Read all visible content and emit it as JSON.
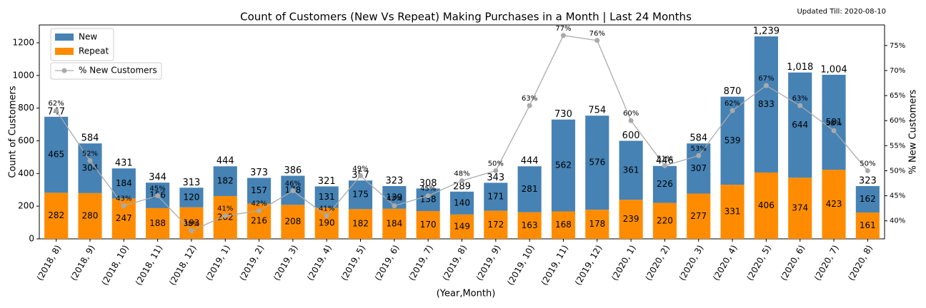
{
  "chart_data": {
    "type": "bar",
    "title": "Count of Customers (New Vs Repeat) Making Purchases in a Month | Last 24 Months",
    "subtitle": "Updated Till: 2020-08-10",
    "x_label": "(Year,Month)",
    "y_label": "Count of Customers",
    "y2_label": "% New Customers",
    "categories": [
      "(2018, 8)",
      "(2018, 9)",
      "(2018, 10)",
      "(2018, 11)",
      "(2018, 12)",
      "(2019, 1)",
      "(2019, 2)",
      "(2019, 3)",
      "(2019, 4)",
      "(2019, 5)",
      "(2019, 6)",
      "(2019, 7)",
      "(2019, 8)",
      "(2019, 9)",
      "(2019, 10)",
      "(2019, 11)",
      "(2019, 12)",
      "(2020, 1)",
      "(2020, 2)",
      "(2020, 3)",
      "(2020, 4)",
      "(2020, 5)",
      "(2020, 6)",
      "(2020, 7)",
      "(2020, 8)"
    ],
    "series": [
      {
        "name": "New",
        "color": "#4682b4",
        "values": [
          465,
          304,
          184,
          156,
          120,
          182,
          157,
          178,
          131,
          175,
          139,
          138,
          140,
          171,
          281,
          562,
          576,
          361,
          226,
          307,
          539,
          833,
          644,
          581,
          162
        ]
      },
      {
        "name": "Repeat",
        "color": "#ff8c00",
        "values": [
          282,
          280,
          247,
          188,
          193,
          262,
          216,
          208,
          190,
          182,
          184,
          170,
          149,
          172,
          163,
          168,
          178,
          239,
          220,
          277,
          331,
          406,
          374,
          423,
          161
        ]
      },
      {
        "name": "% New Customers",
        "color": "#aaaaaa",
        "axis": "y2",
        "values": [
          62,
          52,
          43,
          45,
          38,
          41,
          42,
          46,
          41,
          49,
          43,
          45,
          48,
          50,
          63,
          77,
          76,
          60,
          51,
          53,
          62,
          67,
          63,
          58,
          50
        ],
        "value_labels": [
          "62%",
          "52%",
          "43%",
          "45%",
          "38%",
          "41%",
          "42%",
          "46%",
          "41%",
          "49%",
          "43%",
          "45%",
          "48%",
          "50%",
          "63%",
          "77%",
          "76%",
          "60%",
          "51%",
          "53%",
          "62%",
          "67%",
          "63%",
          "58%",
          "50%"
        ]
      }
    ],
    "totals": {
      "values": [
        747,
        584,
        431,
        344,
        313,
        444,
        373,
        386,
        321,
        357,
        323,
        308,
        289,
        343,
        444,
        730,
        754,
        600,
        446,
        584,
        870,
        1239,
        1018,
        1004,
        323
      ],
      "value_labels": [
        "747",
        "584",
        "431",
        "344",
        "313",
        "444",
        "373",
        "386",
        "321",
        "357",
        "323",
        "308",
        "289",
        "343",
        "444",
        "730",
        "754",
        "600",
        "446",
        "584",
        "870",
        "1,239",
        "1,018",
        "1,004",
        "323"
      ]
    },
    "ylim": [
      0,
      1309
    ],
    "yticks": [
      0,
      200,
      400,
      600,
      800,
      1000,
      1200
    ],
    "y2lim": [
      36.4,
      79.1
    ],
    "y2ticks": [
      {
        "value": 40,
        "label": "40%"
      },
      {
        "value": 45,
        "label": "45%"
      },
      {
        "value": 50,
        "label": "50%"
      },
      {
        "value": 55,
        "label": "55%"
      },
      {
        "value": 60,
        "label": "60%"
      },
      {
        "value": 65,
        "label": "65%"
      },
      {
        "value": 70,
        "label": "70%"
      },
      {
        "value": 75,
        "label": "75%"
      }
    ]
  }
}
